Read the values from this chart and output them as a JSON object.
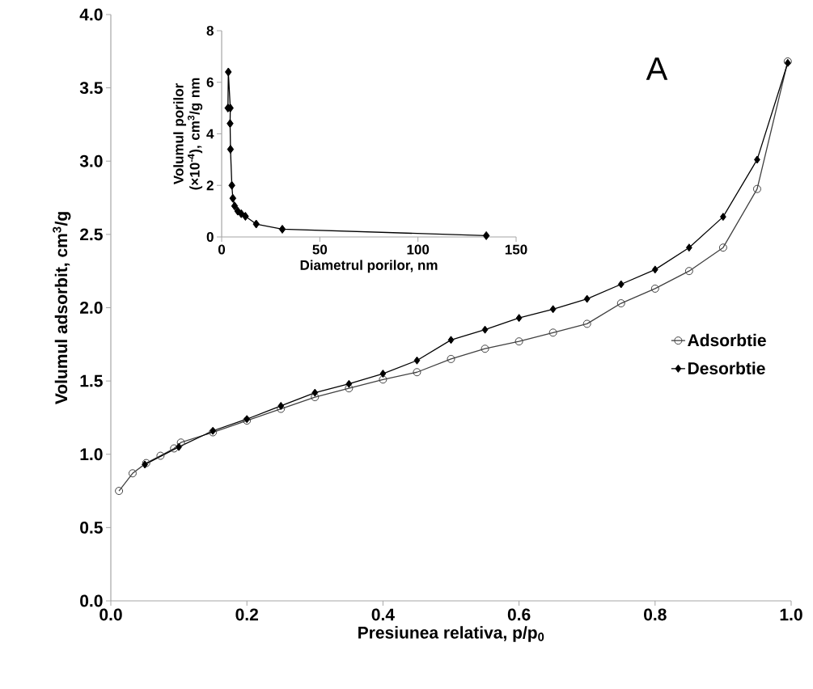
{
  "chart_data": [
    {
      "type": "line",
      "xlabel": "Presiunea relativa, p/p$_{0}$",
      "ylabel": "Volumul adsorbit, cm$^{3}$/g",
      "annotations": [
        "A"
      ],
      "xlim": [
        0,
        1
      ],
      "ylim": [
        0,
        4
      ],
      "xticks": [
        {
          "value": 0,
          "label": "0.0"
        },
        0.2,
        0.4,
        0.6,
        0.8,
        {
          "value": 1,
          "label": "1.0"
        }
      ],
      "yticks": [
        {
          "value": 0,
          "label": "0.0"
        },
        0.5,
        {
          "value": 1,
          "label": "1.0"
        },
        1.5,
        {
          "value": 2,
          "label": "2.0"
        },
        2.5,
        {
          "value": 3,
          "label": "3.0"
        },
        3.5,
        {
          "value": 4,
          "label": "4.0"
        }
      ],
      "legend": "right",
      "line_style": "solid",
      "series": [
        {
          "name": "Adsorbtie",
          "color": "#404040",
          "marker": "circle",
          "x": [
            0.012,
            0.032,
            0.052,
            0.073,
            0.093,
            0.103,
            0.15,
            0.2,
            0.25,
            0.3,
            0.35,
            0.4,
            0.45,
            0.5,
            0.55,
            0.6,
            0.65,
            0.7,
            0.75,
            0.8,
            0.85,
            0.9,
            0.95,
            0.995
          ],
          "values": [
            0.75,
            0.87,
            0.94,
            0.99,
            1.04,
            1.08,
            1.15,
            1.23,
            1.31,
            1.39,
            1.45,
            1.51,
            1.56,
            1.65,
            1.72,
            1.77,
            1.83,
            1.89,
            2.03,
            2.13,
            2.25,
            2.41,
            2.81,
            3.68
          ]
        },
        {
          "name": "Desorbtie",
          "color": "#000000",
          "marker": "diamond",
          "x": [
            0.05,
            0.1,
            0.15,
            0.2,
            0.25,
            0.3,
            0.35,
            0.4,
            0.45,
            0.5,
            0.55,
            0.6,
            0.65,
            0.7,
            0.75,
            0.8,
            0.85,
            0.9,
            0.95,
            0.995
          ],
          "values": [
            0.93,
            1.05,
            1.16,
            1.24,
            1.33,
            1.42,
            1.48,
            1.55,
            1.64,
            1.78,
            1.85,
            1.93,
            1.99,
            2.06,
            2.16,
            2.26,
            2.41,
            2.62,
            3.01,
            3.67
          ]
        }
      ]
    },
    {
      "type": "line",
      "xlabel": "Diametrul porilor, nm",
      "ylabel": "Volumul porilor (×10$^{-4}$), cm$^{3}$/g nm",
      "xlim": [
        0,
        150
      ],
      "ylim": [
        0,
        8
      ],
      "xticks": [
        0,
        50,
        100,
        150
      ],
      "yticks": [
        0,
        2,
        4,
        6,
        8
      ],
      "marker": "diamond",
      "line_style": "solid",
      "series": [
        {
          "color": "#000000",
          "x": [
            3.2,
            3.4,
            4.4,
            4.3,
            4.5,
            5.2,
            5.7,
            6.6,
            8.2,
            10.0,
            12.1,
            17.6,
            30.9,
            134.8
          ],
          "values": [
            5.0,
            6.4,
            5.0,
            4.4,
            3.4,
            2.0,
            1.5,
            1.2,
            1.0,
            0.9,
            0.8,
            0.5,
            0.3,
            0.05
          ]
        }
      ]
    }
  ]
}
